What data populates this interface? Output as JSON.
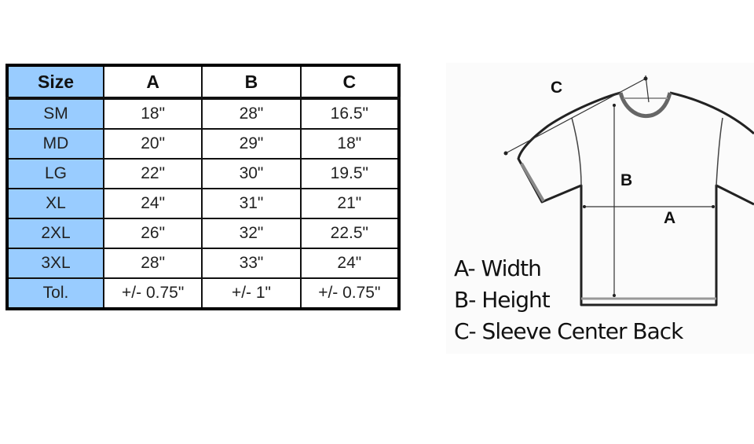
{
  "table": {
    "headers": [
      "Size",
      "A",
      "B",
      "C"
    ],
    "rows": [
      [
        "SM",
        "18\"",
        "28\"",
        "16.5\""
      ],
      [
        "MD",
        "20\"",
        "29\"",
        "18\""
      ],
      [
        "LG",
        "22\"",
        "30\"",
        "19.5\""
      ],
      [
        "XL",
        "24\"",
        "31\"",
        "21\""
      ],
      [
        "2XL",
        "26\"",
        "32\"",
        "22.5\""
      ],
      [
        "3XL",
        "28\"",
        "33\"",
        "24\""
      ],
      [
        "Tol.",
        "+/- 0.75\"",
        "+/- 1\"",
        "+/- 0.75\""
      ]
    ],
    "label_color": "#99ccff"
  },
  "diagram": {
    "labels": {
      "a": "A",
      "b": "B",
      "c": "C"
    },
    "legend": [
      "A- Width",
      "B- Height",
      "C- Sleeve Center Back"
    ]
  }
}
